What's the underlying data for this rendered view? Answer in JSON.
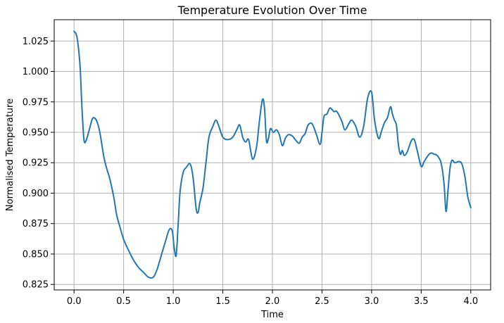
{
  "chart_data": {
    "type": "line",
    "title": "Temperature Evolution Over Time",
    "xlabel": "Time",
    "ylabel": "Normalised Temperature",
    "xlim": [
      -0.2,
      4.2
    ],
    "ylim": [
      0.8205,
      1.0425
    ],
    "xticks": [
      0.0,
      0.5,
      1.0,
      1.5,
      2.0,
      2.5,
      3.0,
      3.5,
      4.0
    ],
    "xtick_labels": [
      "0.0",
      "0.5",
      "1.0",
      "1.5",
      "2.0",
      "2.5",
      "3.0",
      "3.5",
      "4.0"
    ],
    "yticks": [
      0.825,
      0.85,
      0.875,
      0.9,
      0.925,
      0.95,
      0.975,
      1.0,
      1.025
    ],
    "ytick_labels": [
      "0.825",
      "0.850",
      "0.875",
      "0.900",
      "0.925",
      "0.950",
      "0.975",
      "1.000",
      "1.025"
    ],
    "grid": true,
    "series": [
      {
        "color": "#1f77b4",
        "x": [
          0.0,
          0.03,
          0.06,
          0.08,
          0.1,
          0.12,
          0.15,
          0.18,
          0.2,
          0.23,
          0.26,
          0.3,
          0.33,
          0.36,
          0.4,
          0.43,
          0.46,
          0.5,
          0.55,
          0.6,
          0.65,
          0.7,
          0.75,
          0.8,
          0.84,
          0.88,
          0.92,
          0.96,
          0.99,
          1.01,
          1.03,
          1.05,
          1.07,
          1.1,
          1.13,
          1.17,
          1.2,
          1.23,
          1.25,
          1.27,
          1.3,
          1.33,
          1.36,
          1.4,
          1.43,
          1.46,
          1.5,
          1.55,
          1.6,
          1.64,
          1.67,
          1.7,
          1.73,
          1.76,
          1.8,
          1.84,
          1.87,
          1.9,
          1.92,
          1.94,
          1.96,
          1.98,
          2.01,
          2.04,
          2.07,
          2.1,
          2.13,
          2.16,
          2.2,
          2.23,
          2.27,
          2.3,
          2.33,
          2.36,
          2.4,
          2.44,
          2.48,
          2.5,
          2.52,
          2.55,
          2.58,
          2.62,
          2.65,
          2.7,
          2.73,
          2.77,
          2.8,
          2.84,
          2.88,
          2.92,
          2.96,
          3.0,
          3.03,
          3.07,
          3.1,
          3.13,
          3.16,
          3.19,
          3.21,
          3.23,
          3.25,
          3.27,
          3.29,
          3.31,
          3.33,
          3.36,
          3.4,
          3.43,
          3.46,
          3.5,
          3.53,
          3.57,
          3.6,
          3.63,
          3.66,
          3.7,
          3.73,
          3.75,
          3.77,
          3.79,
          3.81,
          3.84,
          3.88,
          3.91,
          3.94,
          3.97,
          4.0
        ],
        "y": [
          1.033,
          1.028,
          1.005,
          0.97,
          0.944,
          0.943,
          0.951,
          0.96,
          0.962,
          0.959,
          0.95,
          0.93,
          0.92,
          0.912,
          0.897,
          0.882,
          0.873,
          0.862,
          0.853,
          0.845,
          0.839,
          0.835,
          0.831,
          0.831,
          0.838,
          0.849,
          0.86,
          0.87,
          0.869,
          0.855,
          0.849,
          0.875,
          0.902,
          0.917,
          0.921,
          0.924,
          0.913,
          0.888,
          0.884,
          0.893,
          0.904,
          0.925,
          0.946,
          0.955,
          0.96,
          0.955,
          0.946,
          0.944,
          0.946,
          0.952,
          0.956,
          0.946,
          0.942,
          0.944,
          0.928,
          0.938,
          0.96,
          0.977,
          0.97,
          0.943,
          0.945,
          0.953,
          0.95,
          0.952,
          0.948,
          0.939,
          0.945,
          0.948,
          0.947,
          0.944,
          0.941,
          0.946,
          0.949,
          0.956,
          0.957,
          0.949,
          0.94,
          0.95,
          0.963,
          0.965,
          0.97,
          0.967,
          0.967,
          0.959,
          0.952,
          0.957,
          0.96,
          0.955,
          0.946,
          0.955,
          0.978,
          0.983,
          0.96,
          0.945,
          0.951,
          0.958,
          0.962,
          0.971,
          0.965,
          0.96,
          0.956,
          0.94,
          0.932,
          0.935,
          0.931,
          0.934,
          0.943,
          0.944,
          0.935,
          0.922,
          0.926,
          0.931,
          0.933,
          0.932,
          0.931,
          0.925,
          0.908,
          0.885,
          0.902,
          0.92,
          0.927,
          0.925,
          0.926,
          0.924,
          0.914,
          0.897,
          0.888
        ]
      }
    ]
  }
}
